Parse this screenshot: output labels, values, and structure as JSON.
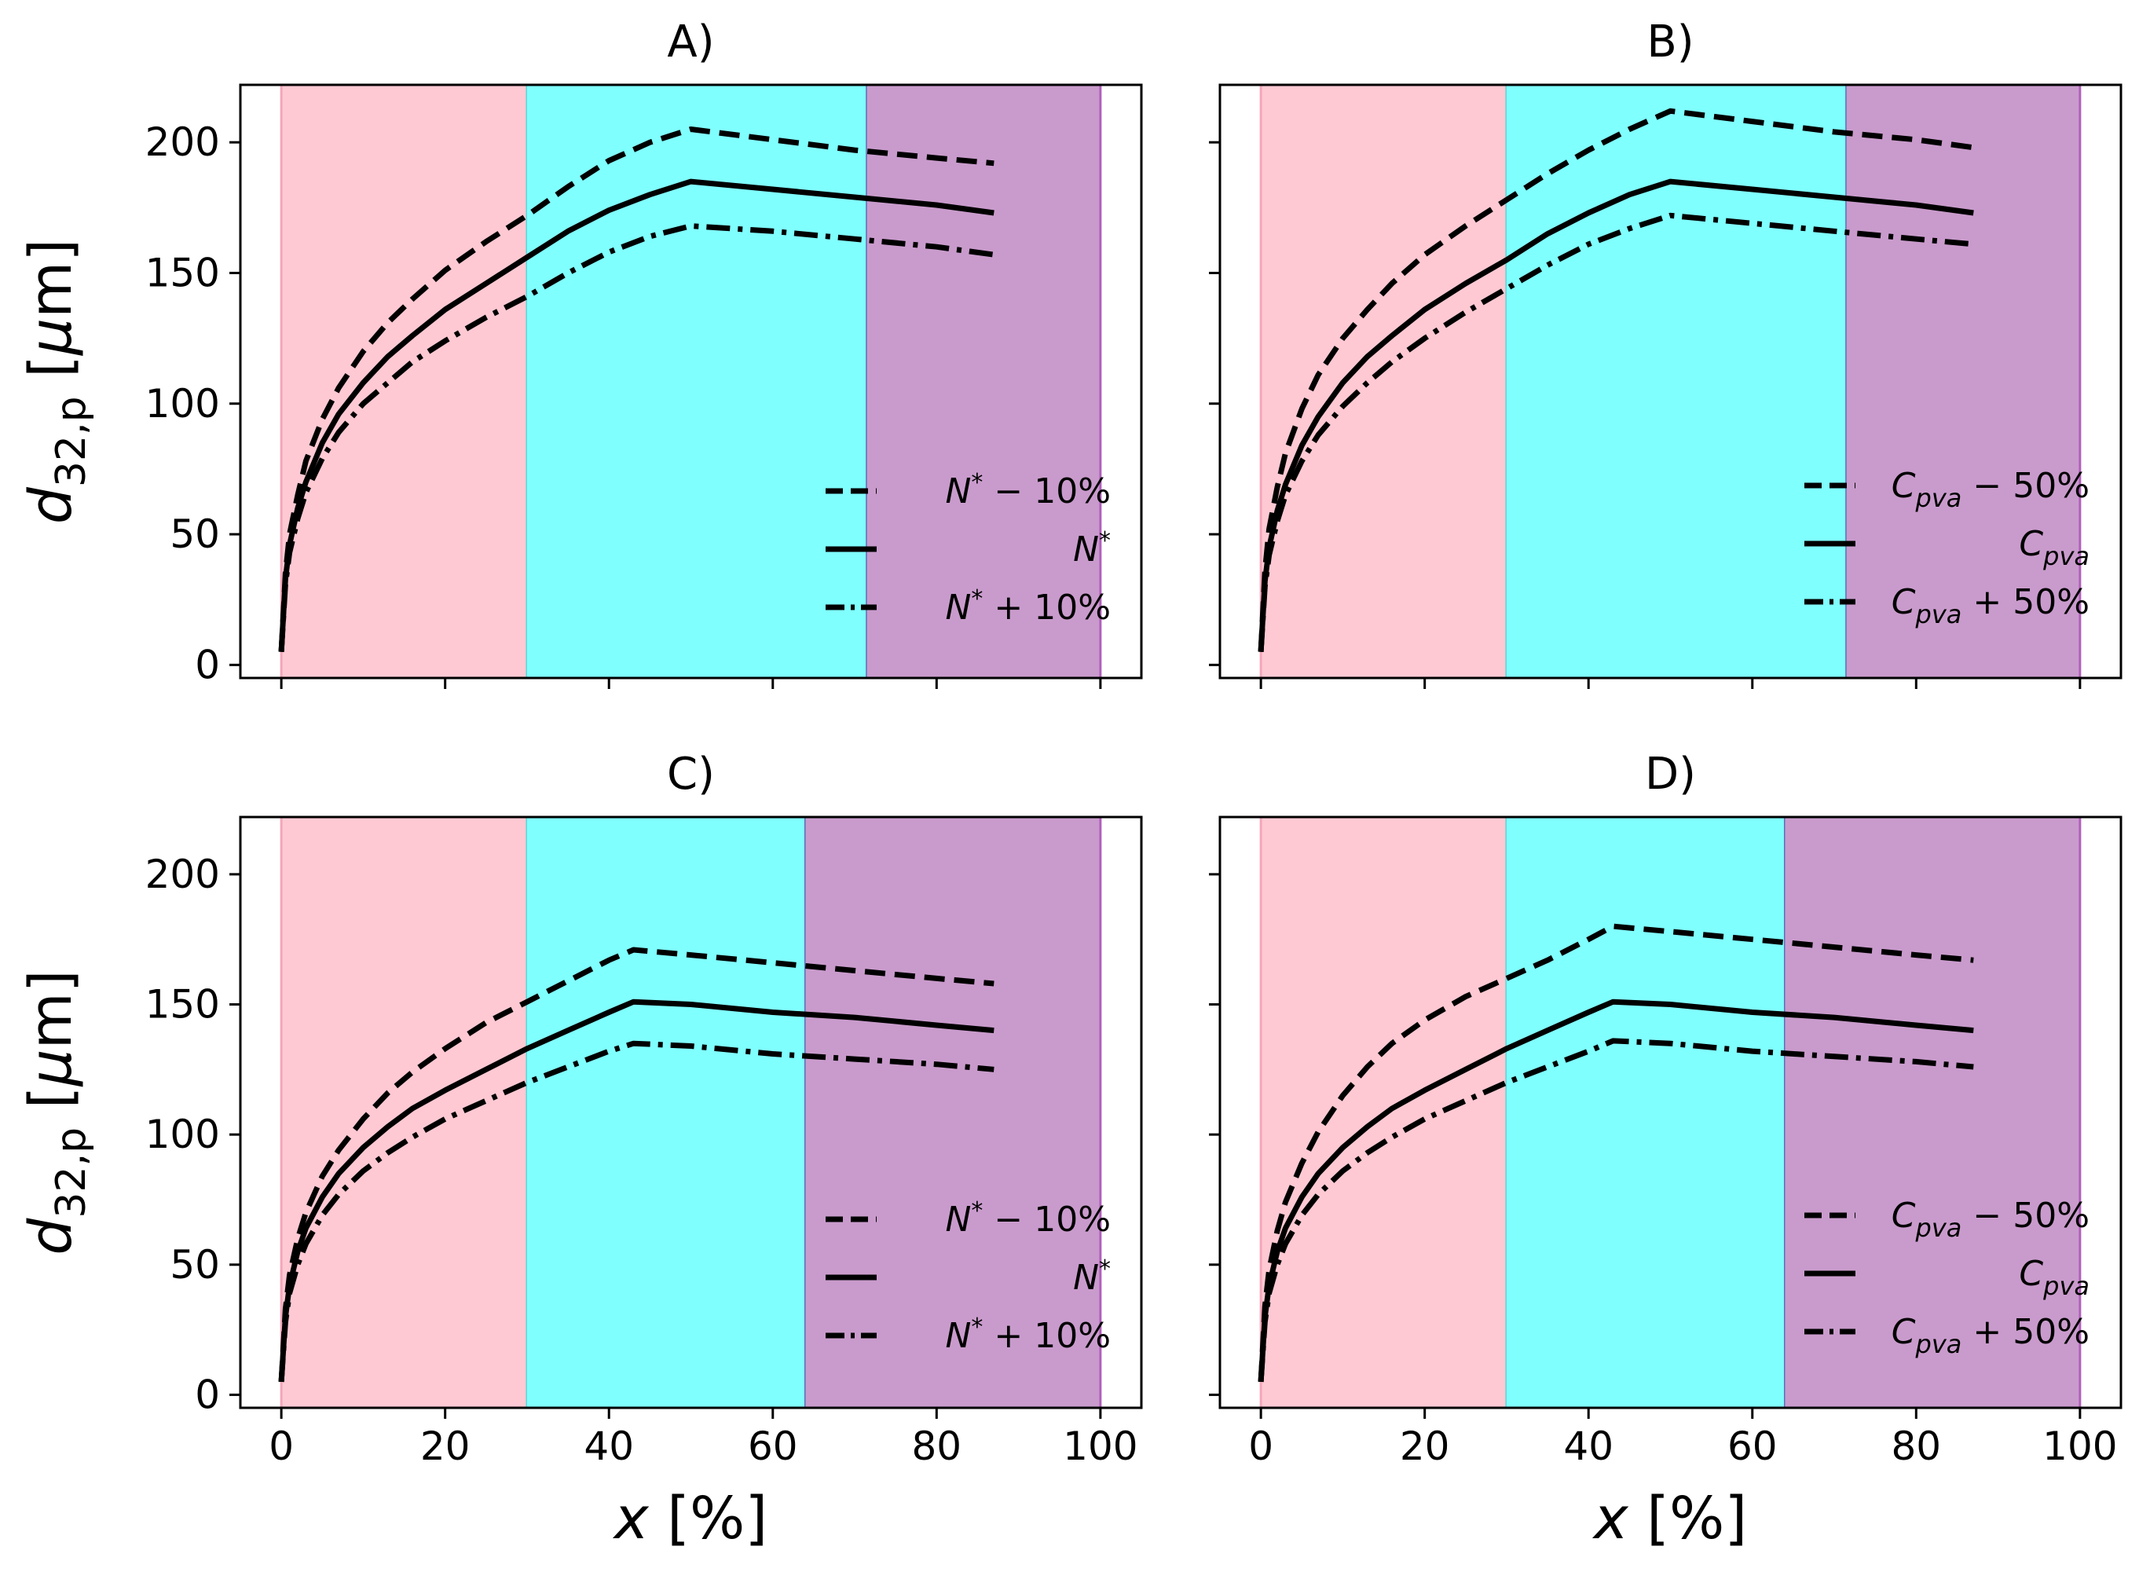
{
  "figure": {
    "xlabel": "x [%]",
    "ylabel": "d32,p [μm]",
    "region_colors": [
      "#ffc9d3",
      "#80ffff",
      "#c99bcc"
    ],
    "line_color": "#000000"
  },
  "chart_data": [
    {
      "type": "line",
      "title": "A)",
      "xlabel": "x [%]",
      "ylabel": "d32,p [μm]",
      "xlim": [
        -5,
        105
      ],
      "ylim": [
        -5,
        222
      ],
      "xticks": [
        0,
        20,
        40,
        60,
        80,
        100
      ],
      "yticks": [
        0,
        50,
        100,
        150,
        200
      ],
      "regions": [
        {
          "from": 0,
          "to": 30,
          "color": "#ffc9d3"
        },
        {
          "from": 30,
          "to": 71.5,
          "color": "#80ffff"
        },
        {
          "from": 71.5,
          "to": 100,
          "color": "#c99bcc"
        }
      ],
      "series": [
        {
          "name": "N* − 10%",
          "legend": {
            "base": "N",
            "sup": "*",
            "op": " − 10%"
          },
          "style": "dashed",
          "x": [
            0,
            0.5,
            1,
            2,
            3,
            5,
            7,
            10,
            13,
            16,
            20,
            25,
            30,
            35,
            40,
            45,
            50,
            60,
            70,
            80,
            87
          ],
          "y": [
            5,
            35,
            50,
            65,
            78,
            94,
            106,
            120,
            131,
            140,
            151,
            162,
            172,
            183,
            193,
            200,
            205,
            201,
            197,
            194,
            192
          ]
        },
        {
          "name": "N*",
          "legend": {
            "base": "N",
            "sup": "*",
            "op": ""
          },
          "style": "solid",
          "x": [
            0,
            0.5,
            1,
            2,
            3,
            5,
            7,
            10,
            13,
            16,
            20,
            25,
            30,
            35,
            40,
            45,
            50,
            60,
            70,
            80,
            87
          ],
          "y": [
            5,
            33,
            46,
            60,
            70,
            85,
            96,
            108,
            118,
            126,
            136,
            146,
            156,
            166,
            174,
            180,
            185,
            182,
            179,
            176,
            173
          ]
        },
        {
          "name": "N* + 10%",
          "legend": {
            "base": "N",
            "sup": "*",
            "op": " + 10%"
          },
          "style": "dashdot",
          "x": [
            0,
            0.5,
            1,
            2,
            3,
            5,
            7,
            10,
            13,
            16,
            20,
            25,
            30,
            35,
            40,
            45,
            50,
            60,
            70,
            80,
            87
          ],
          "y": [
            5,
            31,
            43,
            56,
            66,
            79,
            89,
            100,
            108,
            116,
            124,
            133,
            141,
            150,
            158,
            164,
            168,
            166,
            163,
            160,
            157
          ]
        }
      ]
    },
    {
      "type": "line",
      "title": "B)",
      "xlabel": "x [%]",
      "ylabel": "",
      "xlim": [
        -5,
        105
      ],
      "ylim": [
        -5,
        222
      ],
      "xticks": [
        0,
        20,
        40,
        60,
        80,
        100
      ],
      "yticks": [
        0,
        50,
        100,
        150,
        200
      ],
      "regions": [
        {
          "from": 0,
          "to": 30,
          "color": "#ffc9d3"
        },
        {
          "from": 30,
          "to": 71.5,
          "color": "#80ffff"
        },
        {
          "from": 71.5,
          "to": 100,
          "color": "#c99bcc"
        }
      ],
      "series": [
        {
          "name": "Cpva − 50%",
          "legend": {
            "base": "C",
            "sub": "pva",
            "op": " − 50%"
          },
          "style": "dashed",
          "x": [
            0,
            0.5,
            1,
            2,
            3,
            5,
            7,
            10,
            13,
            16,
            20,
            25,
            30,
            35,
            40,
            45,
            50,
            60,
            70,
            80,
            87
          ],
          "y": [
            5,
            36,
            52,
            68,
            81,
            98,
            111,
            125,
            136,
            146,
            157,
            168,
            178,
            188,
            197,
            205,
            212,
            208,
            204,
            201,
            198
          ]
        },
        {
          "name": "Cpva",
          "legend": {
            "base": "C",
            "sub": "pva",
            "op": ""
          },
          "style": "solid",
          "x": [
            0,
            0.5,
            1,
            2,
            3,
            5,
            7,
            10,
            13,
            16,
            20,
            25,
            30,
            35,
            40,
            45,
            50,
            60,
            70,
            80,
            87
          ],
          "y": [
            5,
            32,
            45,
            59,
            69,
            84,
            95,
            108,
            118,
            126,
            136,
            146,
            155,
            165,
            173,
            180,
            185,
            182,
            179,
            176,
            173
          ]
        },
        {
          "name": "Cpva + 50%",
          "legend": {
            "base": "C",
            "sub": "pva",
            "op": " + 50%"
          },
          "style": "dashdot",
          "x": [
            0,
            0.5,
            1,
            2,
            3,
            5,
            7,
            10,
            13,
            16,
            20,
            25,
            30,
            35,
            40,
            45,
            50,
            60,
            70,
            80,
            87
          ],
          "y": [
            5,
            30,
            42,
            55,
            65,
            78,
            88,
            99,
            108,
            116,
            125,
            135,
            144,
            153,
            161,
            167,
            172,
            169,
            166,
            163,
            161
          ]
        }
      ]
    },
    {
      "type": "line",
      "title": "C)",
      "xlabel": "x [%]",
      "ylabel": "d32,p [μm]",
      "xlim": [
        -5,
        105
      ],
      "ylim": [
        -5,
        222
      ],
      "xticks": [
        0,
        20,
        40,
        60,
        80,
        100
      ],
      "yticks": [
        0,
        50,
        100,
        150,
        200
      ],
      "regions": [
        {
          "from": 0,
          "to": 30,
          "color": "#ffc9d3"
        },
        {
          "from": 30,
          "to": 64,
          "color": "#80ffff"
        },
        {
          "from": 64,
          "to": 100,
          "color": "#c99bcc"
        }
      ],
      "series": [
        {
          "name": "N* − 10%",
          "legend": {
            "base": "N",
            "sup": "*",
            "op": " − 10%"
          },
          "style": "dashed",
          "x": [
            0,
            0.5,
            1,
            2,
            3,
            5,
            7,
            10,
            13,
            16,
            20,
            25,
            30,
            35,
            40,
            43,
            50,
            60,
            70,
            80,
            87
          ],
          "y": [
            5,
            33,
            46,
            60,
            70,
            84,
            94,
            106,
            116,
            124,
            133,
            143,
            151,
            159,
            167,
            171,
            169,
            166,
            163,
            160,
            158
          ]
        },
        {
          "name": "N*",
          "legend": {
            "base": "N",
            "sup": "*",
            "op": ""
          },
          "style": "solid",
          "x": [
            0,
            0.5,
            1,
            2,
            3,
            5,
            7,
            10,
            13,
            16,
            20,
            25,
            30,
            35,
            40,
            43,
            50,
            60,
            70,
            80,
            87
          ],
          "y": [
            5,
            30,
            42,
            55,
            64,
            76,
            85,
            95,
            103,
            110,
            117,
            125,
            133,
            140,
            147,
            151,
            150,
            147,
            145,
            142,
            140
          ]
        },
        {
          "name": "N* + 10%",
          "legend": {
            "base": "N",
            "sup": "*",
            "op": " + 10%"
          },
          "style": "dashdot",
          "x": [
            0,
            0.5,
            1,
            2,
            3,
            5,
            7,
            10,
            13,
            16,
            20,
            25,
            30,
            35,
            40,
            43,
            50,
            60,
            70,
            80,
            87
          ],
          "y": [
            5,
            28,
            39,
            50,
            58,
            69,
            77,
            86,
            93,
            99,
            106,
            113,
            120,
            126,
            132,
            135,
            134,
            131,
            129,
            127,
            125
          ]
        }
      ]
    },
    {
      "type": "line",
      "title": "D)",
      "xlabel": "x [%]",
      "ylabel": "",
      "xlim": [
        -5,
        105
      ],
      "ylim": [
        -5,
        222
      ],
      "xticks": [
        0,
        20,
        40,
        60,
        80,
        100
      ],
      "yticks": [
        0,
        50,
        100,
        150,
        200
      ],
      "regions": [
        {
          "from": 0,
          "to": 30,
          "color": "#ffc9d3"
        },
        {
          "from": 30,
          "to": 64,
          "color": "#80ffff"
        },
        {
          "from": 64,
          "to": 100,
          "color": "#c99bcc"
        }
      ],
      "series": [
        {
          "name": "Cpva − 50%",
          "legend": {
            "base": "C",
            "sub": "pva",
            "op": " − 50%"
          },
          "style": "dashed",
          "x": [
            0,
            0.5,
            1,
            2,
            3,
            5,
            7,
            10,
            13,
            16,
            20,
            25,
            30,
            35,
            40,
            43,
            50,
            60,
            70,
            80,
            87
          ],
          "y": [
            5,
            34,
            48,
            63,
            74,
            89,
            101,
            115,
            126,
            135,
            144,
            153,
            160,
            167,
            175,
            180,
            178,
            175,
            172,
            169,
            167
          ]
        },
        {
          "name": "Cpva",
          "legend": {
            "base": "C",
            "sub": "pva",
            "op": ""
          },
          "style": "solid",
          "x": [
            0,
            0.5,
            1,
            2,
            3,
            5,
            7,
            10,
            13,
            16,
            20,
            25,
            30,
            35,
            40,
            43,
            50,
            60,
            70,
            80,
            87
          ],
          "y": [
            5,
            30,
            42,
            55,
            64,
            76,
            85,
            95,
            103,
            110,
            117,
            125,
            133,
            140,
            147,
            151,
            150,
            147,
            145,
            142,
            140
          ]
        },
        {
          "name": "Cpva + 50%",
          "legend": {
            "base": "C",
            "sub": "pva",
            "op": " + 50%"
          },
          "style": "dashdot",
          "x": [
            0,
            0.5,
            1,
            2,
            3,
            5,
            7,
            10,
            13,
            16,
            20,
            25,
            30,
            35,
            40,
            43,
            50,
            60,
            70,
            80,
            87
          ],
          "y": [
            5,
            28,
            39,
            50,
            58,
            69,
            77,
            86,
            93,
            99,
            106,
            113,
            120,
            126,
            132,
            136,
            135,
            132,
            130,
            128,
            126
          ]
        }
      ]
    }
  ]
}
